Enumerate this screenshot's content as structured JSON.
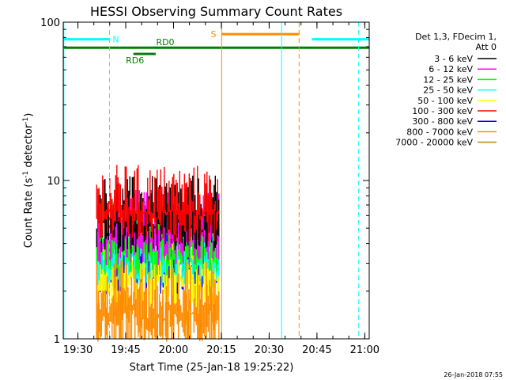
{
  "chart_data": {
    "type": "line",
    "title": "HESSI Observing Summary Count Rates",
    "xlabel": "Start Time (25-Jan-18 19:25:22)",
    "ylabel_main": "Count Rate (s",
    "ylabel_sup1": "-1",
    "ylabel_mid": " detector",
    "ylabel_sup2": "-1",
    "ylabel_end": ")",
    "yscale": "log",
    "ylim": [
      1,
      100
    ],
    "xlim_minutes": [
      0,
      96
    ],
    "x_ticks": [
      {
        "label": "19:30",
        "m": 4.6
      },
      {
        "label": "19:45",
        "m": 19.6
      },
      {
        "label": "20:00",
        "m": 34.6
      },
      {
        "label": "20:15",
        "m": 49.6
      },
      {
        "label": "20:30",
        "m": 64.6
      },
      {
        "label": "20:45",
        "m": 79.6
      },
      {
        "label": "21:00",
        "m": 94.6
      }
    ],
    "y_ticks": [
      {
        "label": "1",
        "v": 1
      },
      {
        "label": "10",
        "v": 10
      },
      {
        "label": "100",
        "v": 100
      }
    ],
    "legend_header": [
      "Det 1,3, FDecim 1,",
      "Att 0"
    ],
    "legend_position": "right",
    "series": [
      {
        "name": "3 - 6 keV",
        "color": "#000000",
        "level": 7.2
      },
      {
        "name": "6 - 12 keV",
        "color": "#ff00ff",
        "level": 6.0
      },
      {
        "name": "12 - 25 keV",
        "color": "#00ff00",
        "level": 5.2
      },
      {
        "name": "25 - 50 keV",
        "color": "#00ffff",
        "level": 4.4
      },
      {
        "name": "50 - 100 keV",
        "color": "#ffff00",
        "level": 3.3
      },
      {
        "name": "100 - 300 keV",
        "color": "#ff0000",
        "level": 8.5
      },
      {
        "name": "300 - 800 keV",
        "color": "#0000ff",
        "level": 4.0
      },
      {
        "name": "800 - 7000 keV",
        "color": "#ff8c00",
        "level": 2.0
      },
      {
        "name": "7000 - 20000 keV",
        "color": "#b8860b",
        "level": 1.0
      }
    ],
    "data_interval_minutes": [
      10.5,
      49.0
    ],
    "flags": [
      {
        "label": "N",
        "color": "#00ffff",
        "segments": [
          [
            0,
            14.5
          ],
          [
            78,
            96
          ]
        ],
        "level": 78
      },
      {
        "label": "S",
        "color": "#ff8c00",
        "segments": [
          [
            49.7,
            74.0
          ]
        ],
        "level": 84
      },
      {
        "label": "RD0",
        "color": "#008000",
        "segments": [
          [
            0,
            96
          ]
        ],
        "level": 69
      },
      {
        "label": "RD6",
        "color": "#008000",
        "segments": [
          [
            22.0,
            29.0
          ]
        ],
        "level": 63
      }
    ],
    "vertical_lines": [
      {
        "m": 0.2,
        "color": "#00ffff",
        "style": "solid"
      },
      {
        "m": 14.5,
        "color": "#00ffff",
        "style": "dashed"
      },
      {
        "m": 49.7,
        "color": "#ff8c00",
        "style": "solid"
      },
      {
        "m": 68.5,
        "color": "#00ffff",
        "style": "solid"
      },
      {
        "m": 74.0,
        "color": "#ff8c00",
        "style": "dashed"
      },
      {
        "m": 92.7,
        "color": "#00ffff",
        "style": "dashed"
      }
    ]
  },
  "footer": {
    "date_stamp": "26-Jan-2018 07:55"
  }
}
